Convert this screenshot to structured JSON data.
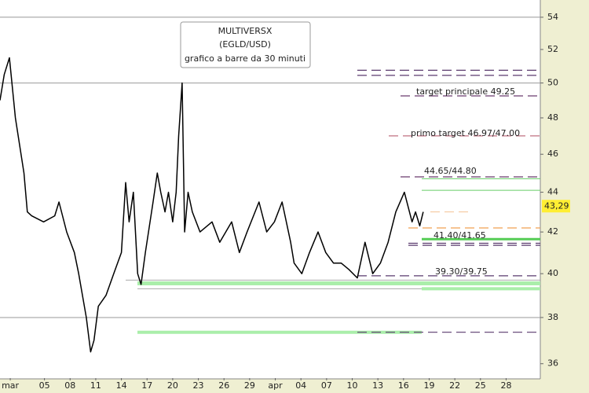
{
  "chart_data": {
    "type": "line",
    "title_lines": [
      "MULTIVERSX",
      "(EGLD/USD)",
      "grafico a barre da 30 minuti"
    ],
    "log_scale": true,
    "ylim": [
      35.4,
      55.1
    ],
    "yticks": [
      36,
      38,
      40,
      42,
      44,
      46,
      48,
      50,
      52,
      54
    ],
    "xlim": [
      -1.2,
      62
    ],
    "xticks": [
      {
        "value": 0,
        "label": "mar"
      },
      {
        "value": 4,
        "label": "05"
      },
      {
        "value": 7,
        "label": "08"
      },
      {
        "value": 10,
        "label": "11"
      },
      {
        "value": 13,
        "label": "14"
      },
      {
        "value": 16,
        "label": "17"
      },
      {
        "value": 19,
        "label": "20"
      },
      {
        "value": 22,
        "label": "23"
      },
      {
        "value": 25,
        "label": "26"
      },
      {
        "value": 28,
        "label": "29"
      },
      {
        "value": 31,
        "label": "apr"
      },
      {
        "value": 34,
        "label": "04"
      },
      {
        "value": 37,
        "label": "07"
      },
      {
        "value": 40,
        "label": "10"
      },
      {
        "value": 43,
        "label": "13"
      },
      {
        "value": 46,
        "label": "16"
      },
      {
        "value": 49,
        "label": "19"
      },
      {
        "value": 52,
        "label": "22"
      },
      {
        "value": 55,
        "label": "25"
      },
      {
        "value": 58,
        "label": "28"
      }
    ],
    "series": [
      {
        "color": "#000000",
        "x": [
          -1.2,
          -0.7,
          -0.1,
          0.6,
          1.6,
          2.0,
          2.5,
          3.9,
          5.2,
          5.7,
          6.6,
          7.5,
          8.0,
          8.9,
          9.4,
          9.8,
          10.3,
          11.2,
          12.1,
          13.0,
          13.5,
          13.9,
          14.4,
          14.9,
          15.3,
          15.8,
          16.7,
          17.2,
          17.6,
          18.1,
          18.5,
          19.0,
          19.4,
          19.7,
          20.1,
          20.4,
          20.8,
          21.3,
          22.2,
          23.6,
          24.5,
          25.9,
          26.8,
          27.7,
          29.1,
          30.0,
          30.9,
          31.8,
          32.8,
          33.2,
          34.1,
          35.0,
          36.0,
          36.9,
          37.8,
          38.7,
          39.6,
          40.6,
          41.5,
          42.4,
          43.3,
          44.2,
          45.1,
          46.1,
          47.0,
          47.4,
          47.9,
          48.3
        ],
        "values": [
          49,
          50.5,
          51.5,
          48,
          45,
          43,
          42.8,
          42.5,
          42.8,
          43.5,
          42,
          41,
          40,
          38,
          36.5,
          37,
          38.5,
          39,
          40,
          41,
          44.5,
          42.5,
          44,
          40,
          39.5,
          41,
          43.5,
          45,
          44,
          43,
          44,
          42.5,
          44,
          47,
          50,
          42,
          44,
          43,
          42,
          42.5,
          41.5,
          42.5,
          41,
          42,
          43.5,
          42,
          42.5,
          43.5,
          41.5,
          40.5,
          40,
          41,
          42,
          41,
          40.5,
          40.5,
          40.2,
          39.8,
          41.5,
          40,
          40.5,
          41.5,
          43,
          44,
          42.5,
          43,
          42.3,
          43
        ]
      }
    ],
    "levels": [
      {
        "value": 54,
        "color": "#999999",
        "width": 1,
        "dashed": false
      },
      {
        "value": 50,
        "color": "#999999",
        "width": 1,
        "dashed": false
      },
      {
        "value": 38,
        "color": "#999999",
        "width": 1,
        "dashed": false
      },
      {
        "value": 39.7,
        "color": "#aaaaaa",
        "width": 1,
        "dashed": false
      },
      {
        "value": 39.3,
        "color": "#aaaaaa",
        "width": 1,
        "dashed": false
      },
      {
        "value": 50.75,
        "color": "#5a3a6e",
        "width": 1.2,
        "dashed": true
      },
      {
        "value": 50.45,
        "color": "#5a3a6e",
        "width": 1.2,
        "dashed": true
      },
      {
        "value": 49.25,
        "color": "#6a3a6e",
        "width": 1.2,
        "dashed": true
      },
      {
        "value": 47.0,
        "color": "#c07080",
        "width": 1.2,
        "dashed": true
      },
      {
        "value": 44.8,
        "color": "#6a3a6e",
        "width": 1.2,
        "dashed": true
      },
      {
        "value": 44.7,
        "color": "#66cc66",
        "width": 1,
        "dashed": false
      },
      {
        "value": 44.1,
        "color": "#66cc66",
        "width": 1,
        "dashed": false
      },
      {
        "value": 41.65,
        "color": "#55cc55",
        "width": 3,
        "dashed": false
      },
      {
        "value": 41.45,
        "color": "#5a3a6e",
        "width": 1.2,
        "dashed": true
      },
      {
        "value": 41.35,
        "color": "#5a3a6e",
        "width": 1.2,
        "dashed": true
      },
      {
        "value": 39.9,
        "color": "#5a3a6e",
        "width": 1.2,
        "dashed": true
      },
      {
        "value": 39.55,
        "color": "#aaeeaa",
        "width": 5,
        "dashed": false
      },
      {
        "value": 39.3,
        "color": "#aaeeaa",
        "width": 4,
        "dashed": false
      },
      {
        "value": 37.35,
        "color": "#aaeeaa",
        "width": 4,
        "dashed": false
      },
      {
        "value": 37.35,
        "color": "#5a3a6e",
        "width": 1.2,
        "dashed": true
      },
      {
        "value": 42.2,
        "color": "#f0a050",
        "width": 1.2,
        "dashed": true
      },
      {
        "value": 43.0,
        "color": "#f5c9a0",
        "width": 1.2,
        "dashed": true
      }
    ],
    "annotations": [
      "target principale 49.25",
      "primo target 46.97/47.00",
      "44.65/44.80",
      "41.40/41.65",
      "39.30/39.75"
    ],
    "last_price": {
      "value": 43.29,
      "label": "43,29"
    }
  }
}
